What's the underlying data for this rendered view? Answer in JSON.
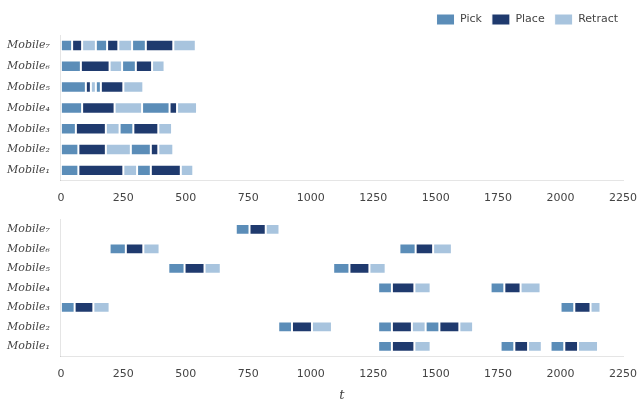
{
  "chart_data": [
    {
      "type": "bar",
      "orientation": "horizontal",
      "grid": false,
      "legend": "upper right",
      "categories": [
        "Mobile₁",
        "Mobile₂",
        "Mobile₃",
        "Mobile₄",
        "Mobile₅",
        "Mobile₆",
        "Mobile₇"
      ],
      "xlim": [
        0,
        2250
      ],
      "xticks": [
        0,
        250,
        500,
        750,
        1000,
        1250,
        1500,
        1750,
        2000,
        2250
      ],
      "series": [
        {
          "name": "Pick",
          "color": "#5b8db8",
          "values": [
            {
              "robot": "Mobile₁",
              "start": 0,
              "dur": 70
            },
            {
              "robot": "Mobile₁",
              "start": 305,
              "dur": 55
            },
            {
              "robot": "Mobile₂",
              "start": 0,
              "dur": 70
            },
            {
              "robot": "Mobile₂",
              "start": 280,
              "dur": 80
            },
            {
              "robot": "Mobile₃",
              "start": 0,
              "dur": 60
            },
            {
              "robot": "Mobile₃",
              "start": 235,
              "dur": 55
            },
            {
              "robot": "Mobile₄",
              "start": 0,
              "dur": 85
            },
            {
              "robot": "Mobile₄",
              "start": 325,
              "dur": 110
            },
            {
              "robot": "Mobile₅",
              "start": 0,
              "dur": 100
            },
            {
              "robot": "Mobile₅",
              "start": 140,
              "dur": 20
            },
            {
              "robot": "Mobile₆",
              "start": 0,
              "dur": 80
            },
            {
              "robot": "Mobile₆",
              "start": 245,
              "dur": 55
            },
            {
              "robot": "Mobile₇",
              "start": 0,
              "dur": 45
            },
            {
              "robot": "Mobile₇",
              "start": 140,
              "dur": 45
            },
            {
              "robot": "Mobile₇",
              "start": 285,
              "dur": 55
            }
          ]
        },
        {
          "name": "Place",
          "color": "#1f3a6e",
          "values": [
            {
              "robot": "Mobile₁",
              "start": 70,
              "dur": 180
            },
            {
              "robot": "Mobile₁",
              "start": 360,
              "dur": 120
            },
            {
              "robot": "Mobile₂",
              "start": 70,
              "dur": 110
            },
            {
              "robot": "Mobile₂",
              "start": 360,
              "dur": 30
            },
            {
              "robot": "Mobile₃",
              "start": 60,
              "dur": 120
            },
            {
              "robot": "Mobile₃",
              "start": 290,
              "dur": 100
            },
            {
              "robot": "Mobile₄",
              "start": 85,
              "dur": 130
            },
            {
              "robot": "Mobile₄",
              "start": 435,
              "dur": 30
            },
            {
              "robot": "Mobile₅",
              "start": 100,
              "dur": 20
            },
            {
              "robot": "Mobile₅",
              "start": 160,
              "dur": 90
            },
            {
              "robot": "Mobile₆",
              "start": 80,
              "dur": 115
            },
            {
              "robot": "Mobile₆",
              "start": 300,
              "dur": 65
            },
            {
              "robot": "Mobile₇",
              "start": 45,
              "dur": 40
            },
            {
              "robot": "Mobile₇",
              "start": 185,
              "dur": 45
            },
            {
              "robot": "Mobile₇",
              "start": 340,
              "dur": 110
            }
          ]
        },
        {
          "name": "Retract",
          "color": "#a8c4de",
          "values": [
            {
              "robot": "Mobile₁",
              "start": 250,
              "dur": 55
            },
            {
              "robot": "Mobile₁",
              "start": 480,
              "dur": 50
            },
            {
              "robot": "Mobile₂",
              "start": 180,
              "dur": 100
            },
            {
              "robot": "Mobile₂",
              "start": 390,
              "dur": 60
            },
            {
              "robot": "Mobile₃",
              "start": 180,
              "dur": 55
            },
            {
              "robot": "Mobile₃",
              "start": 390,
              "dur": 55
            },
            {
              "robot": "Mobile₄",
              "start": 215,
              "dur": 110
            },
            {
              "robot": "Mobile₄",
              "start": 465,
              "dur": 80
            },
            {
              "robot": "Mobile₅",
              "start": 120,
              "dur": 20
            },
            {
              "robot": "Mobile₅",
              "start": 250,
              "dur": 80
            },
            {
              "robot": "Mobile₆",
              "start": 195,
              "dur": 50
            },
            {
              "robot": "Mobile₆",
              "start": 365,
              "dur": 50
            },
            {
              "robot": "Mobile₇",
              "start": 85,
              "dur": 55
            },
            {
              "robot": "Mobile₇",
              "start": 230,
              "dur": 55
            },
            {
              "robot": "Mobile₇",
              "start": 450,
              "dur": 90
            }
          ]
        }
      ]
    },
    {
      "type": "bar",
      "orientation": "horizontal",
      "grid": false,
      "xlabel": "t",
      "categories": [
        "Mobile₁",
        "Mobile₂",
        "Mobile₃",
        "Mobile₄",
        "Mobile₅",
        "Mobile₆",
        "Mobile₇"
      ],
      "xlim": [
        0,
        2250
      ],
      "xticks": [
        0,
        250,
        500,
        750,
        1000,
        1250,
        1500,
        1750,
        2000,
        2250
      ],
      "series": [
        {
          "color": "#5b8db8",
          "values": [
            {
              "robot": "Mobile₁",
              "start": 1270,
              "dur": 55
            },
            {
              "robot": "Mobile₁",
              "start": 1760,
              "dur": 55
            },
            {
              "robot": "Mobile₁",
              "start": 1960,
              "dur": 55
            },
            {
              "robot": "Mobile₂",
              "start": 870,
              "dur": 55
            },
            {
              "robot": "Mobile₂",
              "start": 1270,
              "dur": 55
            },
            {
              "robot": "Mobile₂",
              "start": 1460,
              "dur": 55
            },
            {
              "robot": "Mobile₃",
              "start": 0,
              "dur": 55
            },
            {
              "robot": "Mobile₃",
              "start": 2000,
              "dur": 55
            },
            {
              "robot": "Mobile₄",
              "start": 1270,
              "dur": 55
            },
            {
              "robot": "Mobile₄",
              "start": 1720,
              "dur": 55
            },
            {
              "robot": "Mobile₅",
              "start": 430,
              "dur": 65
            },
            {
              "robot": "Mobile₅",
              "start": 1090,
              "dur": 65
            },
            {
              "robot": "Mobile₆",
              "start": 195,
              "dur": 65
            },
            {
              "robot": "Mobile₆",
              "start": 1355,
              "dur": 65
            },
            {
              "robot": "Mobile₇",
              "start": 700,
              "dur": 55
            }
          ]
        },
        {
          "color": "#1f3a6e",
          "values": [
            {
              "robot": "Mobile₁",
              "start": 1325,
              "dur": 90
            },
            {
              "robot": "Mobile₁",
              "start": 1815,
              "dur": 55
            },
            {
              "robot": "Mobile₁",
              "start": 2015,
              "dur": 55
            },
            {
              "robot": "Mobile₂",
              "start": 925,
              "dur": 80
            },
            {
              "robot": "Mobile₂",
              "start": 1325,
              "dur": 80
            },
            {
              "robot": "Mobile₂",
              "start": 1515,
              "dur": 80
            },
            {
              "robot": "Mobile₃",
              "start": 55,
              "dur": 75
            },
            {
              "robot": "Mobile₃",
              "start": 2055,
              "dur": 65
            },
            {
              "robot": "Mobile₄",
              "start": 1325,
              "dur": 90
            },
            {
              "robot": "Mobile₄",
              "start": 1775,
              "dur": 65
            },
            {
              "robot": "Mobile₅",
              "start": 495,
              "dur": 80
            },
            {
              "robot": "Mobile₅",
              "start": 1155,
              "dur": 80
            },
            {
              "robot": "Mobile₆",
              "start": 260,
              "dur": 70
            },
            {
              "robot": "Mobile₆",
              "start": 1420,
              "dur": 70
            },
            {
              "robot": "Mobile₇",
              "start": 755,
              "dur": 65
            }
          ]
        },
        {
          "color": "#a8c4de",
          "values": [
            {
              "robot": "Mobile₁",
              "start": 1415,
              "dur": 65
            },
            {
              "robot": "Mobile₁",
              "start": 1870,
              "dur": 55
            },
            {
              "robot": "Mobile₁",
              "start": 2070,
              "dur": 80
            },
            {
              "robot": "Mobile₂",
              "start": 1005,
              "dur": 80
            },
            {
              "robot": "Mobile₂",
              "start": 1405,
              "dur": 55
            },
            {
              "robot": "Mobile₂",
              "start": 1595,
              "dur": 55
            },
            {
              "robot": "Mobile₃",
              "start": 130,
              "dur": 65
            },
            {
              "robot": "Mobile₃",
              "start": 2120,
              "dur": 40
            },
            {
              "robot": "Mobile₄",
              "start": 1415,
              "dur": 65
            },
            {
              "robot": "Mobile₄",
              "start": 1840,
              "dur": 80
            },
            {
              "robot": "Mobile₅",
              "start": 575,
              "dur": 65
            },
            {
              "robot": "Mobile₅",
              "start": 1235,
              "dur": 65
            },
            {
              "robot": "Mobile₆",
              "start": 330,
              "dur": 65
            },
            {
              "robot": "Mobile₆",
              "start": 1490,
              "dur": 75
            },
            {
              "robot": "Mobile₇",
              "start": 820,
              "dur": 55
            }
          ]
        }
      ]
    }
  ]
}
